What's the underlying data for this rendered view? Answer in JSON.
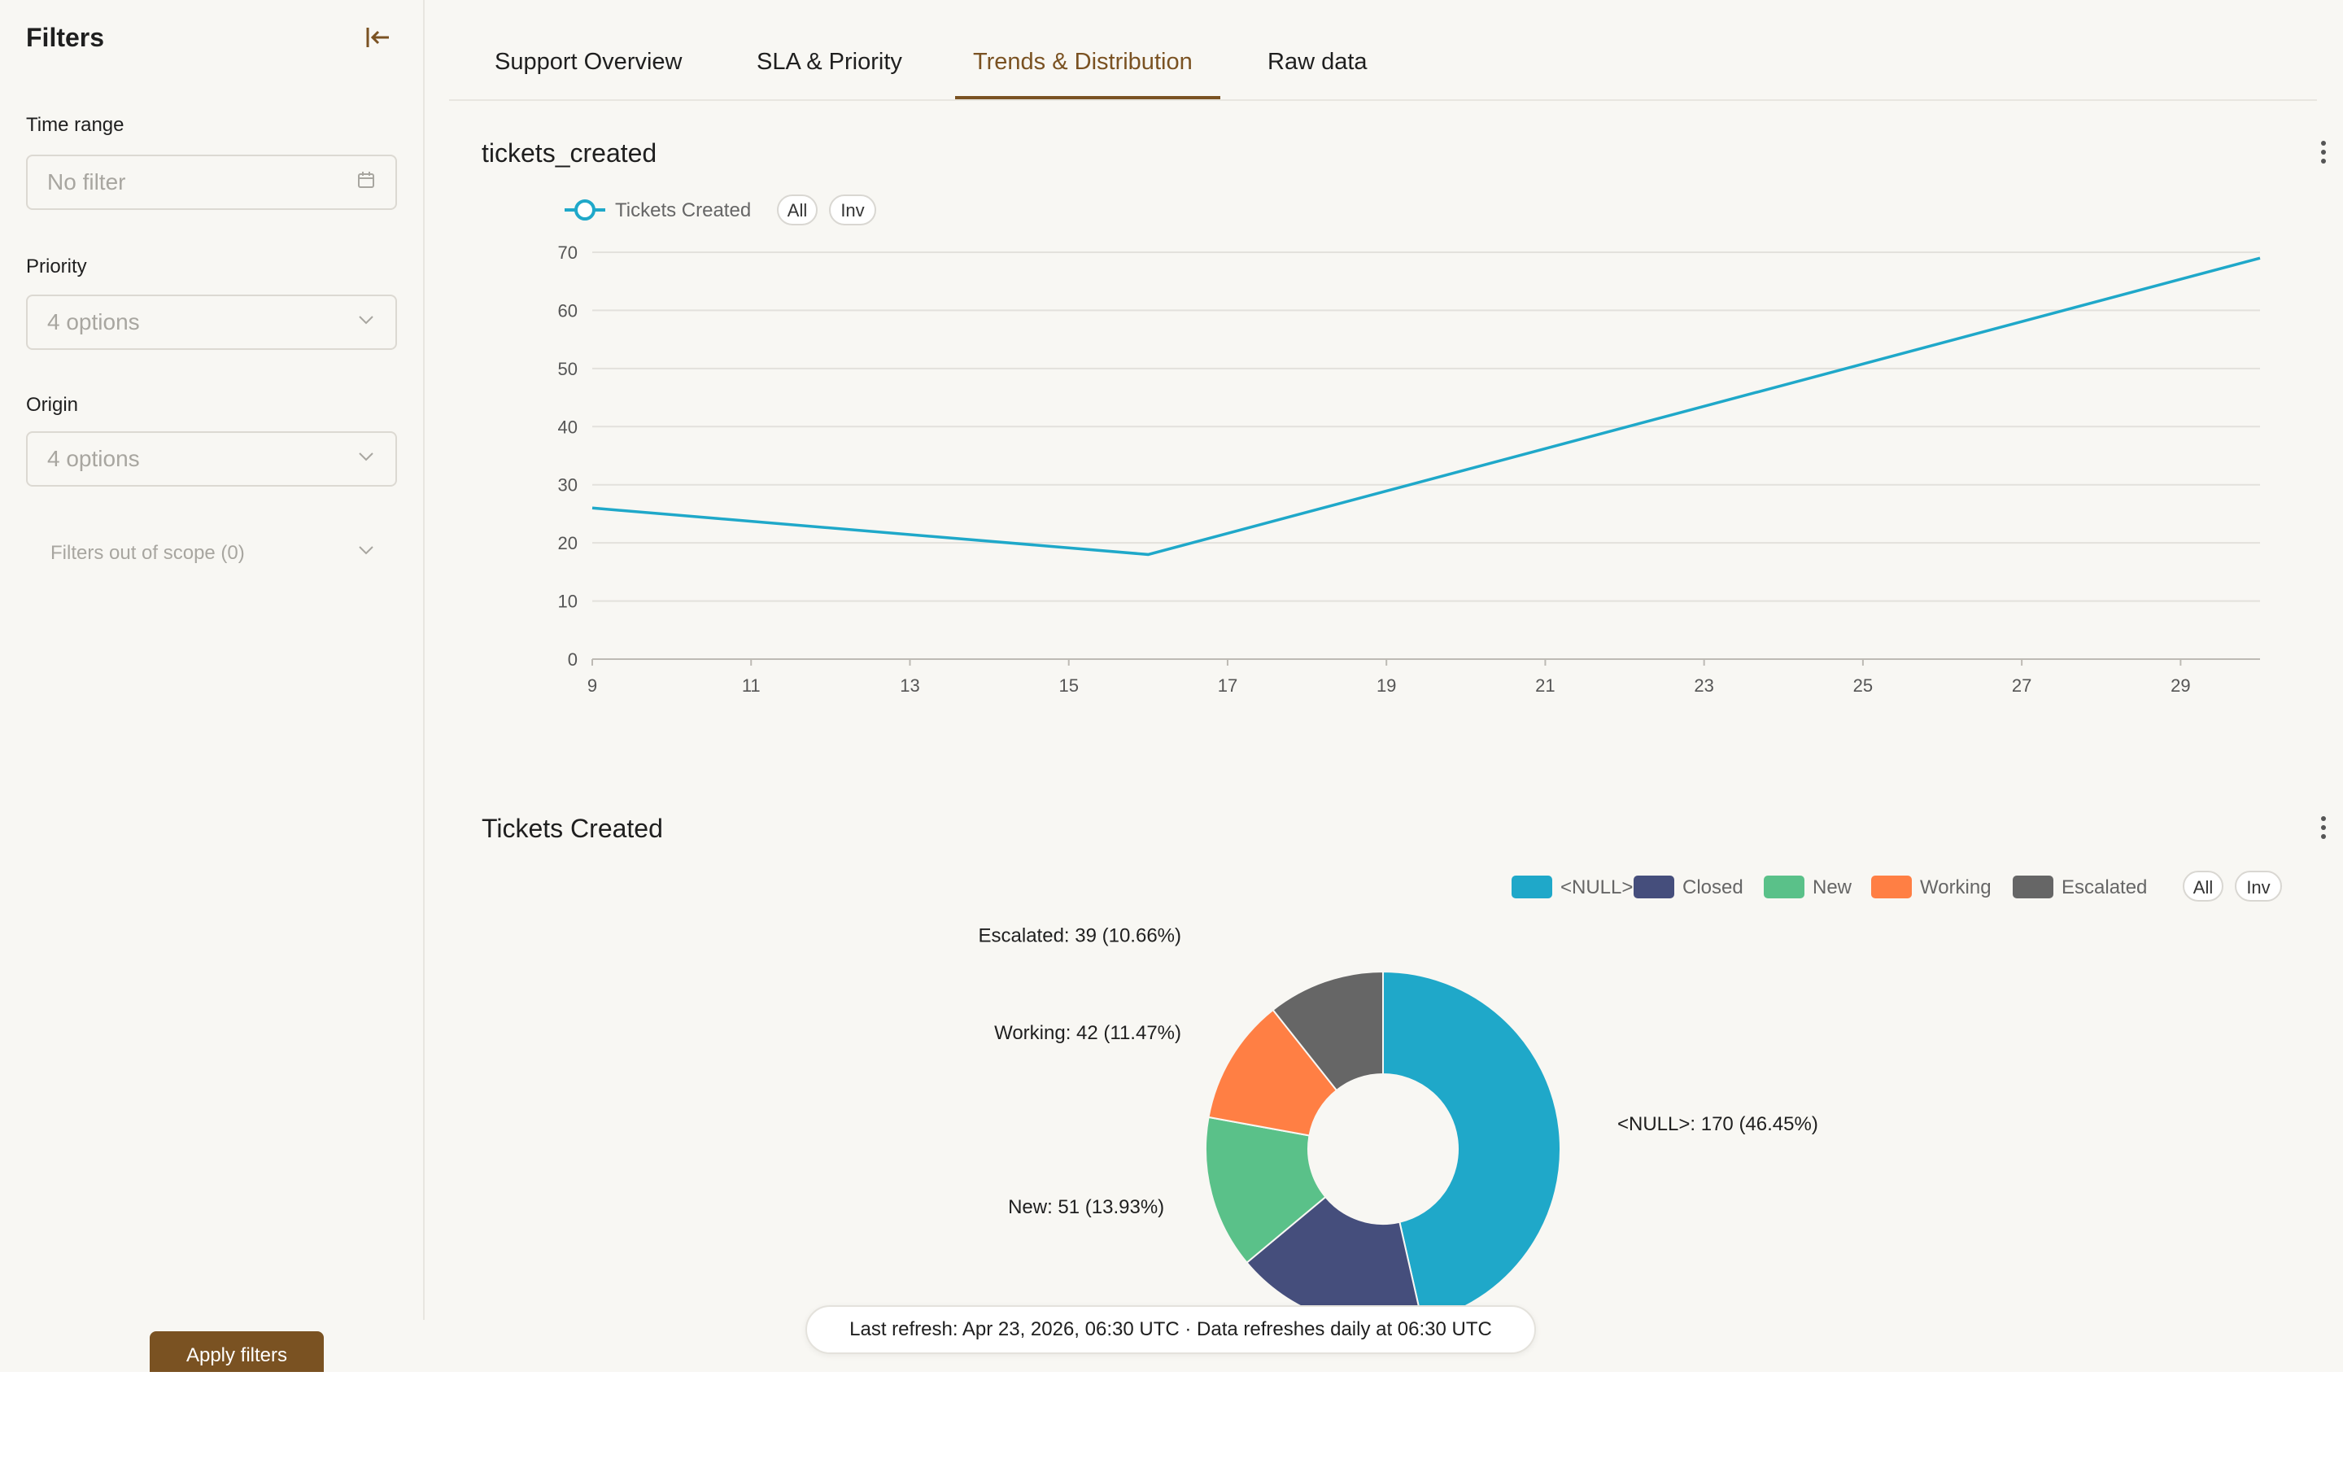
{
  "sidebar": {
    "title": "Filters",
    "time_range": {
      "label": "Time range",
      "placeholder": "No filter"
    },
    "priority": {
      "label": "Priority",
      "value": "4 options"
    },
    "origin": {
      "label": "Origin",
      "value": "4 options"
    },
    "out_of_scope": "Filters out of scope (0)",
    "apply_label": "Apply filters"
  },
  "tabs": [
    {
      "label": "Support Overview",
      "active": false
    },
    {
      "label": "SLA & Priority",
      "active": false
    },
    {
      "label": "Trends & Distribution",
      "active": true
    },
    {
      "label": "Raw data",
      "active": false
    }
  ],
  "line_chart": {
    "title": "tickets_created",
    "legend": {
      "series": "Tickets Created",
      "all": "All",
      "inv": "Inv"
    },
    "color": "#1fa8c9"
  },
  "donut_chart": {
    "title": "Tickets Created",
    "legend_all": "All",
    "legend_inv": "Inv"
  },
  "refresh_text": "Last refresh: Apr 23, 2026, 06:30 UTC · Data refreshes daily at 06:30 UTC",
  "chart_data": [
    {
      "type": "line",
      "title": "tickets_created",
      "series": [
        {
          "name": "Tickets Created",
          "x": [
            9,
            16,
            30
          ],
          "values": [
            26,
            18,
            69
          ]
        }
      ],
      "x_ticks": [
        9,
        11,
        13,
        15,
        17,
        19,
        21,
        23,
        25,
        27,
        29
      ],
      "y_ticks": [
        0,
        10,
        20,
        30,
        40,
        50,
        60,
        70
      ],
      "xlim": [
        9,
        30
      ],
      "ylim": [
        0,
        70
      ],
      "grid": true,
      "legend_position": "top-left"
    },
    {
      "type": "pie",
      "title": "Tickets Created",
      "slices": [
        {
          "name": "<NULL>",
          "value": 170,
          "label": "<NULL>: 170 (46.45%)",
          "color": "#1fa8c9"
        },
        {
          "name": "Closed",
          "value": 64,
          "label": "",
          "color": "#454e7c"
        },
        {
          "name": "New",
          "value": 51,
          "label": "New: 51 (13.93%)",
          "color": "#5ac189"
        },
        {
          "name": "Working",
          "value": 42,
          "label": "Working: 42 (11.47%)",
          "color": "#ff7f44"
        },
        {
          "name": "Escalated",
          "value": 39,
          "label": "Escalated: 39 (10.66%)",
          "color": "#666666"
        }
      ],
      "legend_position": "top-right"
    }
  ]
}
